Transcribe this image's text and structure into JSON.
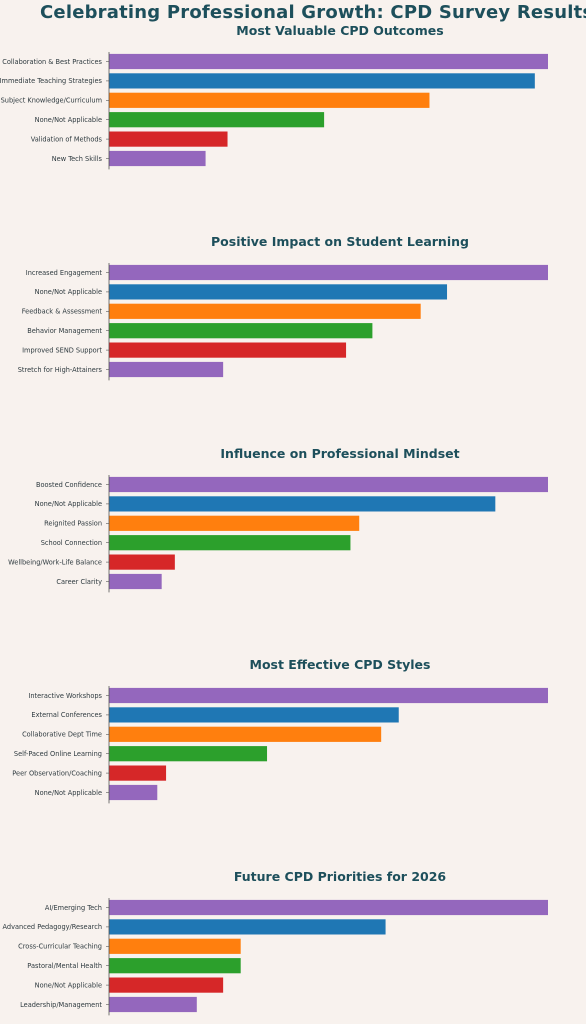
{
  "title": "Celebrating Professional Growth: CPD Survey Results",
  "colors": [
    "#9467bd",
    "#1f77b4",
    "#ff7f0e",
    "#2ca02c",
    "#d62728",
    "#9467bd"
  ],
  "chart_data": [
    {
      "type": "bar",
      "orientation": "horizontal",
      "title": "Most Valuable CPD Outcomes",
      "categories": [
        "Collaboration & Best Practices",
        "Immediate Teaching Strategies",
        "Subject Knowledge/Curriculum",
        "None/Not Applicable",
        "Validation of Methods",
        "New Tech Skills"
      ],
      "values": [
        100,
        97,
        73,
        49,
        27,
        22
      ],
      "xlim": [
        0,
        100
      ],
      "xlabel": "",
      "ylabel": "",
      "x_ticks_shown": false,
      "grid": false
    },
    {
      "type": "bar",
      "orientation": "horizontal",
      "title": "Positive Impact on Student Learning",
      "categories": [
        "Increased Engagement",
        "None/Not Applicable",
        "Feedback & Assessment",
        "Behavior Management",
        "Improved SEND Support",
        "Stretch for High-Attainers"
      ],
      "values": [
        100,
        77,
        71,
        60,
        54,
        26
      ],
      "xlim": [
        0,
        100
      ],
      "xlabel": "",
      "ylabel": "",
      "x_ticks_shown": false,
      "grid": false
    },
    {
      "type": "bar",
      "orientation": "horizontal",
      "title": "Influence on Professional Mindset",
      "categories": [
        "Boosted Confidence",
        "None/Not Applicable",
        "Reignited Passion",
        "School Connection",
        "Wellbeing/Work-Life Balance",
        "Career Clarity"
      ],
      "values": [
        100,
        88,
        57,
        55,
        15,
        12
      ],
      "xlim": [
        0,
        100
      ],
      "xlabel": "",
      "ylabel": "",
      "x_ticks_shown": false,
      "grid": false
    },
    {
      "type": "bar",
      "orientation": "horizontal",
      "title": "Most Effective CPD Styles",
      "categories": [
        "Interactive Workshops",
        "External Conferences",
        "Collaborative Dept Time",
        "Self-Paced Online Learning",
        "Peer Observation/Coaching",
        "None/Not Applicable"
      ],
      "values": [
        100,
        66,
        62,
        36,
        13,
        11
      ],
      "xlim": [
        0,
        100
      ],
      "xlabel": "",
      "ylabel": "",
      "x_ticks_shown": false,
      "grid": false
    },
    {
      "type": "bar",
      "orientation": "horizontal",
      "title": "Future CPD Priorities for 2026",
      "categories": [
        "AI/Emerging Tech",
        "Advanced Pedagogy/Research",
        "Cross-Curricular Teaching",
        "Pastoral/Mental Health",
        "None/Not Applicable",
        "Leadership/Management"
      ],
      "values": [
        100,
        63,
        30,
        30,
        26,
        20
      ],
      "xlim": [
        0,
        100
      ],
      "xlabel": "",
      "ylabel": "",
      "x_ticks_shown": false,
      "grid": false
    }
  ]
}
